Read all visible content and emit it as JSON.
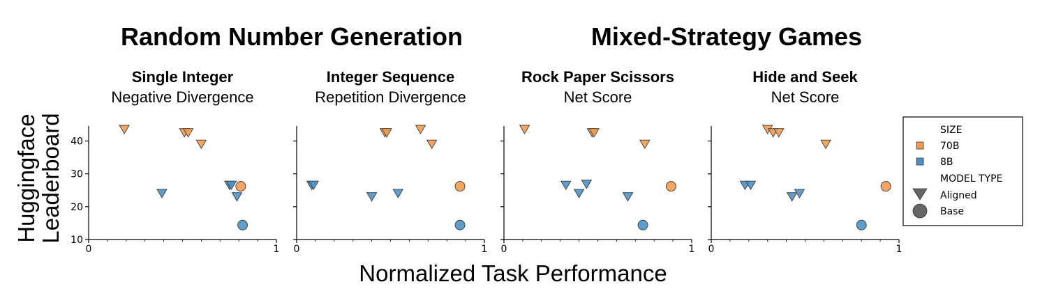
{
  "chart_data": {
    "type": "scatter",
    "group_titles": [
      "Random Number Generation",
      "Mixed-Strategy Games"
    ],
    "xlabel": "Normalized Task Performance",
    "ylabel_lines": [
      "Huggingface",
      "Leaderboard"
    ],
    "xlim": [
      0,
      1
    ],
    "ylim": [
      10,
      45
    ],
    "x_ticks": [
      0,
      1
    ],
    "y_ticks": [
      10,
      20,
      30,
      40
    ],
    "colors": {
      "70B": "#F39B4E",
      "8B": "#4E92C6"
    },
    "legend": {
      "size_title": "SIZE",
      "size_items": [
        "70B",
        "8B"
      ],
      "type_title": "MODEL TYPE",
      "type_items": [
        "Aligned",
        "Base"
      ],
      "placement": "right"
    },
    "panels": [
      {
        "title": "Single Integer",
        "subtitle": "Negative Divergence",
        "points": [
          {
            "x": 0.19,
            "y": 43.5,
            "size": "70B",
            "type": "Aligned"
          },
          {
            "x": 0.51,
            "y": 42.5,
            "size": "70B",
            "type": "Aligned"
          },
          {
            "x": 0.53,
            "y": 42.5,
            "size": "70B",
            "type": "Aligned"
          },
          {
            "x": 0.6,
            "y": 39,
            "size": "70B",
            "type": "Aligned"
          },
          {
            "x": 0.81,
            "y": 26.2,
            "size": "70B",
            "type": "Base"
          },
          {
            "x": 0.39,
            "y": 24,
            "size": "8B",
            "type": "Aligned"
          },
          {
            "x": 0.75,
            "y": 26.5,
            "size": "8B",
            "type": "Aligned"
          },
          {
            "x": 0.76,
            "y": 26.5,
            "size": "8B",
            "type": "Aligned"
          },
          {
            "x": 0.79,
            "y": 23,
            "size": "8B",
            "type": "Aligned"
          },
          {
            "x": 0.82,
            "y": 14.4,
            "size": "8B",
            "type": "Base"
          }
        ]
      },
      {
        "title": "Integer Sequence",
        "subtitle": "Repetition Divergence",
        "points": [
          {
            "x": 0.47,
            "y": 42.5,
            "size": "70B",
            "type": "Aligned"
          },
          {
            "x": 0.48,
            "y": 42.5,
            "size": "70B",
            "type": "Aligned"
          },
          {
            "x": 0.66,
            "y": 43.5,
            "size": "70B",
            "type": "Aligned"
          },
          {
            "x": 0.72,
            "y": 39,
            "size": "70B",
            "type": "Aligned"
          },
          {
            "x": 0.87,
            "y": 26.2,
            "size": "70B",
            "type": "Base"
          },
          {
            "x": 0.08,
            "y": 26.5,
            "size": "8B",
            "type": "Aligned"
          },
          {
            "x": 0.09,
            "y": 26.5,
            "size": "8B",
            "type": "Aligned"
          },
          {
            "x": 0.4,
            "y": 23,
            "size": "8B",
            "type": "Aligned"
          },
          {
            "x": 0.54,
            "y": 24,
            "size": "8B",
            "type": "Aligned"
          },
          {
            "x": 0.87,
            "y": 14.4,
            "size": "8B",
            "type": "Base"
          }
        ]
      },
      {
        "title": "Rock Paper Scissors",
        "subtitle": "Net Score",
        "points": [
          {
            "x": 0.11,
            "y": 43.5,
            "size": "70B",
            "type": "Aligned"
          },
          {
            "x": 0.47,
            "y": 42.5,
            "size": "70B",
            "type": "Aligned"
          },
          {
            "x": 0.48,
            "y": 42.5,
            "size": "70B",
            "type": "Aligned"
          },
          {
            "x": 0.75,
            "y": 39,
            "size": "70B",
            "type": "Aligned"
          },
          {
            "x": 0.89,
            "y": 26.2,
            "size": "70B",
            "type": "Base"
          },
          {
            "x": 0.33,
            "y": 26.5,
            "size": "8B",
            "type": "Aligned"
          },
          {
            "x": 0.4,
            "y": 24,
            "size": "8B",
            "type": "Aligned"
          },
          {
            "x": 0.44,
            "y": 26.8,
            "size": "8B",
            "type": "Aligned"
          },
          {
            "x": 0.66,
            "y": 23,
            "size": "8B",
            "type": "Aligned"
          },
          {
            "x": 0.74,
            "y": 14.4,
            "size": "8B",
            "type": "Base"
          }
        ]
      },
      {
        "title": "Hide and Seek",
        "subtitle": "Net Score",
        "points": [
          {
            "x": 0.3,
            "y": 43.5,
            "size": "70B",
            "type": "Aligned"
          },
          {
            "x": 0.33,
            "y": 42.5,
            "size": "70B",
            "type": "Aligned"
          },
          {
            "x": 0.36,
            "y": 42.5,
            "size": "70B",
            "type": "Aligned"
          },
          {
            "x": 0.61,
            "y": 39,
            "size": "70B",
            "type": "Aligned"
          },
          {
            "x": 0.93,
            "y": 26.2,
            "size": "70B",
            "type": "Base"
          },
          {
            "x": 0.18,
            "y": 26.5,
            "size": "8B",
            "type": "Aligned"
          },
          {
            "x": 0.21,
            "y": 26.5,
            "size": "8B",
            "type": "Aligned"
          },
          {
            "x": 0.43,
            "y": 23,
            "size": "8B",
            "type": "Aligned"
          },
          {
            "x": 0.47,
            "y": 24,
            "size": "8B",
            "type": "Aligned"
          },
          {
            "x": 0.8,
            "y": 14.4,
            "size": "8B",
            "type": "Base"
          }
        ]
      }
    ]
  }
}
